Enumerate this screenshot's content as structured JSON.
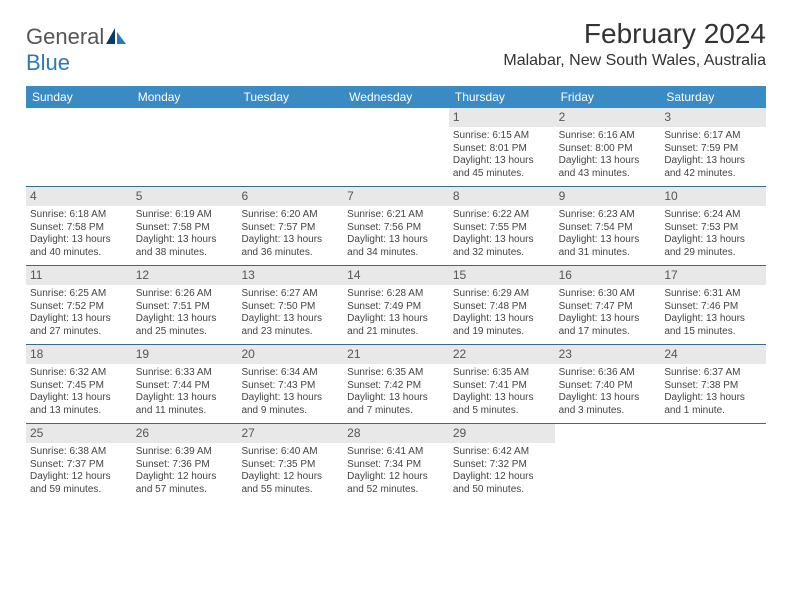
{
  "logo": {
    "word1": "General",
    "word2": "Blue"
  },
  "title": "February 2024",
  "location": "Malabar, New South Wales, Australia",
  "header_bg": "#3a8ac4",
  "row_border": "#3a6a8a",
  "daybar_bg": "#e8e8e8",
  "days": [
    "Sunday",
    "Monday",
    "Tuesday",
    "Wednesday",
    "Thursday",
    "Friday",
    "Saturday"
  ],
  "weeks": [
    [
      null,
      null,
      null,
      null,
      {
        "n": "1",
        "sr": "Sunrise: 6:15 AM",
        "ss": "Sunset: 8:01 PM",
        "dl": "Daylight: 13 hours and 45 minutes."
      },
      {
        "n": "2",
        "sr": "Sunrise: 6:16 AM",
        "ss": "Sunset: 8:00 PM",
        "dl": "Daylight: 13 hours and 43 minutes."
      },
      {
        "n": "3",
        "sr": "Sunrise: 6:17 AM",
        "ss": "Sunset: 7:59 PM",
        "dl": "Daylight: 13 hours and 42 minutes."
      }
    ],
    [
      {
        "n": "4",
        "sr": "Sunrise: 6:18 AM",
        "ss": "Sunset: 7:58 PM",
        "dl": "Daylight: 13 hours and 40 minutes."
      },
      {
        "n": "5",
        "sr": "Sunrise: 6:19 AM",
        "ss": "Sunset: 7:58 PM",
        "dl": "Daylight: 13 hours and 38 minutes."
      },
      {
        "n": "6",
        "sr": "Sunrise: 6:20 AM",
        "ss": "Sunset: 7:57 PM",
        "dl": "Daylight: 13 hours and 36 minutes."
      },
      {
        "n": "7",
        "sr": "Sunrise: 6:21 AM",
        "ss": "Sunset: 7:56 PM",
        "dl": "Daylight: 13 hours and 34 minutes."
      },
      {
        "n": "8",
        "sr": "Sunrise: 6:22 AM",
        "ss": "Sunset: 7:55 PM",
        "dl": "Daylight: 13 hours and 32 minutes."
      },
      {
        "n": "9",
        "sr": "Sunrise: 6:23 AM",
        "ss": "Sunset: 7:54 PM",
        "dl": "Daylight: 13 hours and 31 minutes."
      },
      {
        "n": "10",
        "sr": "Sunrise: 6:24 AM",
        "ss": "Sunset: 7:53 PM",
        "dl": "Daylight: 13 hours and 29 minutes."
      }
    ],
    [
      {
        "n": "11",
        "sr": "Sunrise: 6:25 AM",
        "ss": "Sunset: 7:52 PM",
        "dl": "Daylight: 13 hours and 27 minutes."
      },
      {
        "n": "12",
        "sr": "Sunrise: 6:26 AM",
        "ss": "Sunset: 7:51 PM",
        "dl": "Daylight: 13 hours and 25 minutes."
      },
      {
        "n": "13",
        "sr": "Sunrise: 6:27 AM",
        "ss": "Sunset: 7:50 PM",
        "dl": "Daylight: 13 hours and 23 minutes."
      },
      {
        "n": "14",
        "sr": "Sunrise: 6:28 AM",
        "ss": "Sunset: 7:49 PM",
        "dl": "Daylight: 13 hours and 21 minutes."
      },
      {
        "n": "15",
        "sr": "Sunrise: 6:29 AM",
        "ss": "Sunset: 7:48 PM",
        "dl": "Daylight: 13 hours and 19 minutes."
      },
      {
        "n": "16",
        "sr": "Sunrise: 6:30 AM",
        "ss": "Sunset: 7:47 PM",
        "dl": "Daylight: 13 hours and 17 minutes."
      },
      {
        "n": "17",
        "sr": "Sunrise: 6:31 AM",
        "ss": "Sunset: 7:46 PM",
        "dl": "Daylight: 13 hours and 15 minutes."
      }
    ],
    [
      {
        "n": "18",
        "sr": "Sunrise: 6:32 AM",
        "ss": "Sunset: 7:45 PM",
        "dl": "Daylight: 13 hours and 13 minutes."
      },
      {
        "n": "19",
        "sr": "Sunrise: 6:33 AM",
        "ss": "Sunset: 7:44 PM",
        "dl": "Daylight: 13 hours and 11 minutes."
      },
      {
        "n": "20",
        "sr": "Sunrise: 6:34 AM",
        "ss": "Sunset: 7:43 PM",
        "dl": "Daylight: 13 hours and 9 minutes."
      },
      {
        "n": "21",
        "sr": "Sunrise: 6:35 AM",
        "ss": "Sunset: 7:42 PM",
        "dl": "Daylight: 13 hours and 7 minutes."
      },
      {
        "n": "22",
        "sr": "Sunrise: 6:35 AM",
        "ss": "Sunset: 7:41 PM",
        "dl": "Daylight: 13 hours and 5 minutes."
      },
      {
        "n": "23",
        "sr": "Sunrise: 6:36 AM",
        "ss": "Sunset: 7:40 PM",
        "dl": "Daylight: 13 hours and 3 minutes."
      },
      {
        "n": "24",
        "sr": "Sunrise: 6:37 AM",
        "ss": "Sunset: 7:38 PM",
        "dl": "Daylight: 13 hours and 1 minute."
      }
    ],
    [
      {
        "n": "25",
        "sr": "Sunrise: 6:38 AM",
        "ss": "Sunset: 7:37 PM",
        "dl": "Daylight: 12 hours and 59 minutes."
      },
      {
        "n": "26",
        "sr": "Sunrise: 6:39 AM",
        "ss": "Sunset: 7:36 PM",
        "dl": "Daylight: 12 hours and 57 minutes."
      },
      {
        "n": "27",
        "sr": "Sunrise: 6:40 AM",
        "ss": "Sunset: 7:35 PM",
        "dl": "Daylight: 12 hours and 55 minutes."
      },
      {
        "n": "28",
        "sr": "Sunrise: 6:41 AM",
        "ss": "Sunset: 7:34 PM",
        "dl": "Daylight: 12 hours and 52 minutes."
      },
      {
        "n": "29",
        "sr": "Sunrise: 6:42 AM",
        "ss": "Sunset: 7:32 PM",
        "dl": "Daylight: 12 hours and 50 minutes."
      },
      null,
      null
    ]
  ]
}
